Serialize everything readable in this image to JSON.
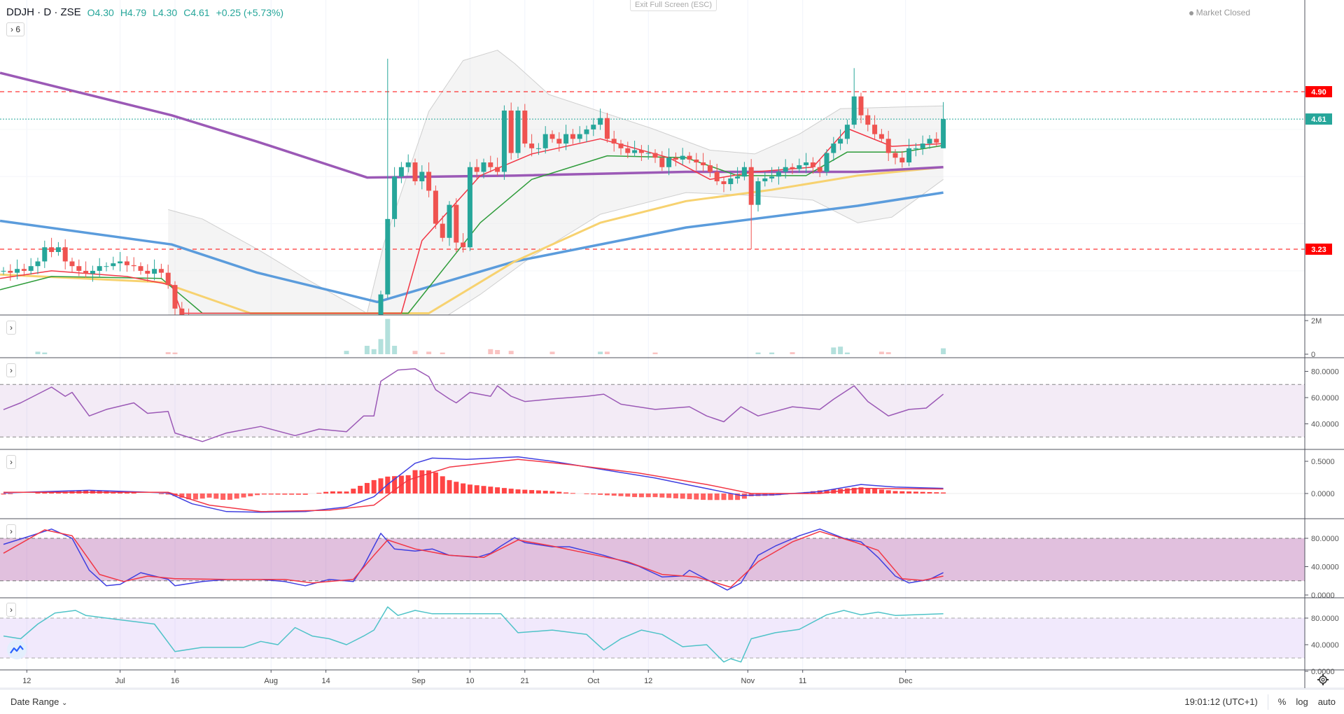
{
  "header": {
    "symbol": "DDJH · D · ZSE",
    "open": "O4.30",
    "high": "H4.79",
    "low": "L4.30",
    "close": "C4.61",
    "change": "+0.25 (+5.73%)",
    "indicators_toggle": "6"
  },
  "exit_fullscreen": "Exit Full Screen (ESC)",
  "market_status": "Market Closed",
  "colors": {
    "up": "#26a69a",
    "down": "#ef5350",
    "ma10": "#f23645",
    "ma20": "#2e9c3a",
    "ma50": "#f7d270",
    "ma100": "#5b9cdc",
    "ma200": "#9b59b6",
    "rsi": "#9b59b6",
    "macd": "#3f3fe0",
    "signal": "#f23645",
    "stoch_k": "#3f3fe0",
    "stoch_d": "#f23645",
    "osc": "#4fc3c8"
  },
  "price_lines": [
    {
      "label": "4.90",
      "value": 4.9,
      "color": "#ff0000",
      "style": "dashed"
    },
    {
      "label": "4.61",
      "value": 4.61,
      "color": "#26a69a",
      "style": "dotted"
    },
    {
      "label": "3.23",
      "value": 3.23,
      "color": "#ff0000",
      "style": "dashed"
    }
  ],
  "candles": {
    "closes": [
      3.0,
      2.98,
      3.02,
      3.0,
      3.05,
      3.1,
      3.25,
      3.2,
      3.25,
      3.1,
      3.05,
      3.0,
      2.97,
      3.0,
      3.05,
      3.05,
      3.08,
      3.1,
      3.06,
      3.05,
      3.0,
      2.97,
      3.02,
      2.98,
      2.85,
      2.6,
      2.5,
      2.45,
      2.4,
      2.38,
      2.35,
      2.3,
      2.32,
      2.3,
      2.28,
      2.3,
      2.33,
      2.3,
      2.28,
      2.25,
      2.28,
      2.3,
      2.32,
      2.3,
      2.28,
      2.3,
      2.32,
      2.3,
      2.28,
      2.26,
      2.28,
      2.3,
      2.32,
      2.35,
      2.4,
      2.75,
      3.55,
      4.0,
      4.1,
      4.15,
      3.95,
      4.05,
      3.85,
      3.5,
      3.35,
      3.7,
      3.3,
      3.25,
      4.1,
      4.05,
      4.15,
      4.1,
      4.05,
      4.7,
      4.25,
      4.7,
      4.35,
      4.3,
      4.3,
      4.45,
      4.4,
      4.35,
      4.45,
      4.4,
      4.45,
      4.5,
      4.55,
      4.62,
      4.4,
      4.35,
      4.3,
      4.25,
      4.28,
      4.25,
      4.25,
      4.2,
      4.1,
      4.2,
      4.18,
      4.22,
      4.18,
      4.15,
      4.12,
      4.05,
      3.95,
      3.92,
      3.98,
      4.0,
      4.1,
      3.7,
      3.95,
      3.98,
      4.0,
      4.05,
      4.1,
      4.08,
      4.12,
      4.15,
      4.1,
      4.05,
      4.25,
      4.35,
      4.4,
      4.55,
      4.85,
      4.65,
      4.55,
      4.45,
      4.4,
      4.25,
      4.2,
      4.15,
      4.3,
      4.3,
      4.35,
      4.4,
      4.36,
      4.61
    ],
    "overrides": {
      "55": {
        "o": 2.4
      },
      "56": {
        "h": 5.25
      },
      "66": {
        "l": 3.2
      },
      "109": {
        "l": 3.23
      },
      "124": {
        "h": 5.15
      },
      "137": {
        "o": 4.3,
        "h": 4.79,
        "l": 4.3
      }
    }
  },
  "moving_averages": {
    "ma10": [
      [
        -0.5,
        2.92
      ],
      [
        7,
        3.0
      ],
      [
        18,
        2.94
      ],
      [
        24.5,
        2.85
      ],
      [
        26,
        2.55
      ],
      [
        58,
        2.55
      ],
      [
        61,
        3.32
      ],
      [
        69.5,
        4.01
      ],
      [
        77,
        4.24
      ],
      [
        87,
        4.4
      ],
      [
        97,
        4.2
      ],
      [
        103,
        3.97
      ],
      [
        109.5,
        4.05
      ],
      [
        118,
        4.1
      ],
      [
        123,
        4.51
      ],
      [
        129.5,
        4.32
      ],
      [
        137,
        4.35
      ]
    ],
    "ma20": [
      [
        -0.5,
        2.8
      ],
      [
        7,
        2.94
      ],
      [
        23,
        2.92
      ],
      [
        29,
        2.55
      ],
      [
        59,
        2.55
      ],
      [
        69.5,
        3.51
      ],
      [
        77,
        3.97
      ],
      [
        88,
        4.22
      ],
      [
        99.5,
        4.2
      ],
      [
        107,
        4.01
      ],
      [
        117,
        4.01
      ],
      [
        123,
        4.26
      ],
      [
        131,
        4.26
      ],
      [
        137,
        4.33
      ]
    ],
    "ma50": [
      [
        -0.5,
        2.96
      ],
      [
        23,
        2.88
      ],
      [
        36,
        2.55
      ],
      [
        62,
        2.55
      ],
      [
        74.5,
        3.1
      ],
      [
        87,
        3.51
      ],
      [
        99.5,
        3.74
      ],
      [
        112,
        3.86
      ],
      [
        124.5,
        4.01
      ],
      [
        137,
        4.1
      ]
    ],
    "ma100": [
      [
        -0.5,
        3.53
      ],
      [
        24.5,
        3.28
      ],
      [
        37,
        2.98
      ],
      [
        54.5,
        2.67
      ],
      [
        74.5,
        3.1
      ],
      [
        99.5,
        3.46
      ],
      [
        124.5,
        3.69
      ],
      [
        137,
        3.83
      ]
    ],
    "ma200": [
      [
        -0.5,
        5.1
      ],
      [
        24.5,
        4.65
      ],
      [
        37,
        4.37
      ],
      [
        53,
        3.99
      ],
      [
        74.5,
        4.01
      ],
      [
        99.5,
        4.05
      ],
      [
        124.5,
        4.05
      ],
      [
        137,
        4.1
      ]
    ]
  },
  "bollinger": {
    "upper": [
      [
        24,
        3.65
      ],
      [
        29,
        3.55
      ],
      [
        37,
        3.23
      ],
      [
        44.5,
        2.9
      ],
      [
        53,
        2.55
      ],
      [
        55.5,
        3.3
      ],
      [
        62,
        4.69
      ],
      [
        67,
        5.23
      ],
      [
        72,
        5.34
      ],
      [
        74.5,
        5.2
      ],
      [
        79.5,
        4.87
      ],
      [
        87,
        4.69
      ],
      [
        94.5,
        4.51
      ],
      [
        103,
        4.28
      ],
      [
        109.5,
        4.24
      ],
      [
        116,
        4.45
      ],
      [
        122,
        4.72
      ],
      [
        137,
        4.75
      ]
    ],
    "lower": [
      [
        24,
        2.3
      ],
      [
        53,
        2.3
      ],
      [
        62,
        2.4
      ],
      [
        69.5,
        2.75
      ],
      [
        77,
        3.15
      ],
      [
        87,
        3.6
      ],
      [
        99.5,
        3.83
      ],
      [
        109.5,
        3.8
      ],
      [
        118,
        3.75
      ],
      [
        124.5,
        3.51
      ],
      [
        129.5,
        3.57
      ],
      [
        137,
        3.97
      ]
    ]
  },
  "volume_millions": [
    [
      5,
      0.15
    ],
    [
      6,
      0.1
    ],
    [
      24,
      0.12
    ],
    [
      25,
      0.1
    ],
    [
      50,
      0.2
    ],
    [
      53,
      0.5
    ],
    [
      54,
      0.3
    ],
    [
      55,
      0.9
    ],
    [
      56,
      2.1
    ],
    [
      57,
      0.5
    ],
    [
      60,
      0.2
    ],
    [
      62,
      0.15
    ],
    [
      64,
      0.1
    ],
    [
      71,
      0.3
    ],
    [
      72,
      0.25
    ],
    [
      74,
      0.2
    ],
    [
      80,
      0.15
    ],
    [
      87,
      0.15
    ],
    [
      88,
      0.15
    ],
    [
      95,
      0.1
    ],
    [
      110,
      0.1
    ],
    [
      112,
      0.1
    ],
    [
      115,
      0.12
    ],
    [
      121,
      0.4
    ],
    [
      122,
      0.45
    ],
    [
      123,
      0.1
    ],
    [
      128,
      0.15
    ],
    [
      129,
      0.12
    ],
    [
      137,
      0.35
    ]
  ],
  "rsi": {
    "band": [
      30,
      70
    ],
    "values": [
      [
        0,
        50.8
      ],
      [
        2.5,
        56
      ],
      [
        7,
        68
      ],
      [
        9,
        61
      ],
      [
        10,
        64
      ],
      [
        12.5,
        46
      ],
      [
        15,
        51
      ],
      [
        19,
        56
      ],
      [
        21,
        48
      ],
      [
        24,
        49.5
      ],
      [
        25,
        33
      ],
      [
        29,
        26.5
      ],
      [
        32.5,
        33
      ],
      [
        37.5,
        38
      ],
      [
        42.5,
        31
      ],
      [
        46,
        36
      ],
      [
        50,
        34
      ],
      [
        52.5,
        46
      ],
      [
        54,
        46
      ],
      [
        55,
        72.5
      ],
      [
        57.5,
        81
      ],
      [
        60,
        82
      ],
      [
        62,
        76
      ],
      [
        63,
        66
      ],
      [
        65,
        59
      ],
      [
        66,
        56
      ],
      [
        68,
        64
      ],
      [
        71,
        61
      ],
      [
        72,
        69
      ],
      [
        74,
        61
      ],
      [
        76,
        57
      ],
      [
        80,
        59
      ],
      [
        85,
        61
      ],
      [
        87.5,
        62.6
      ],
      [
        90,
        55
      ],
      [
        95,
        51
      ],
      [
        100,
        53
      ],
      [
        102.5,
        46
      ],
      [
        105,
        41.6
      ],
      [
        107.5,
        53
      ],
      [
        110,
        46
      ],
      [
        112.5,
        49.5
      ],
      [
        115,
        53
      ],
      [
        119,
        51
      ],
      [
        121,
        58.7
      ],
      [
        124,
        69
      ],
      [
        126,
        57
      ],
      [
        129,
        46
      ],
      [
        132,
        51
      ],
      [
        134.5,
        52
      ],
      [
        137,
        62.6
      ]
    ]
  },
  "macd": {
    "macd": [
      [
        0,
        0.01
      ],
      [
        12.5,
        0.05
      ],
      [
        24,
        0.01
      ],
      [
        27.5,
        -0.16
      ],
      [
        32.5,
        -0.28
      ],
      [
        37.5,
        -0.29
      ],
      [
        44,
        -0.28
      ],
      [
        50,
        -0.21
      ],
      [
        54,
        -0.05
      ],
      [
        56,
        0.14
      ],
      [
        60,
        0.47
      ],
      [
        62.5,
        0.55
      ],
      [
        67.5,
        0.53
      ],
      [
        75,
        0.57
      ],
      [
        80,
        0.5
      ],
      [
        87.5,
        0.37
      ],
      [
        95,
        0.24
      ],
      [
        100,
        0.13
      ],
      [
        107.5,
        -0.03
      ],
      [
        112.5,
        -0.02
      ],
      [
        119,
        0.03
      ],
      [
        125,
        0.14
      ],
      [
        130,
        0.1
      ],
      [
        137,
        0.08
      ]
    ],
    "signal": [
      [
        0,
        0.02
      ],
      [
        24,
        0.02
      ],
      [
        30,
        -0.18
      ],
      [
        37.5,
        -0.28
      ],
      [
        47.5,
        -0.26
      ],
      [
        54,
        -0.18
      ],
      [
        59,
        0.21
      ],
      [
        65,
        0.41
      ],
      [
        75,
        0.53
      ],
      [
        82.5,
        0.45
      ],
      [
        92.5,
        0.32
      ],
      [
        102.5,
        0.14
      ],
      [
        109,
        0.0
      ],
      [
        119,
        0.0
      ],
      [
        125,
        0.08
      ],
      [
        137,
        0.07
      ]
    ]
  },
  "stochastic": {
    "band": [
      20,
      80
    ],
    "k": [
      [
        0,
        71.5
      ],
      [
        4,
        83.6
      ],
      [
        7,
        93
      ],
      [
        10,
        80
      ],
      [
        12.5,
        35
      ],
      [
        15,
        13
      ],
      [
        17,
        15
      ],
      [
        20,
        31.5
      ],
      [
        24,
        22
      ],
      [
        25,
        13
      ],
      [
        29,
        19
      ],
      [
        32.5,
        22
      ],
      [
        37.5,
        22
      ],
      [
        41,
        19
      ],
      [
        44,
        13
      ],
      [
        47.5,
        22
      ],
      [
        51,
        19
      ],
      [
        52.5,
        41
      ],
      [
        55,
        87
      ],
      [
        57,
        65
      ],
      [
        60,
        62
      ],
      [
        62.5,
        65
      ],
      [
        65,
        56
      ],
      [
        69,
        53
      ],
      [
        71,
        59
      ],
      [
        72.5,
        69
      ],
      [
        74.5,
        81
      ],
      [
        76,
        74
      ],
      [
        80,
        68
      ],
      [
        82.5,
        68
      ],
      [
        87.5,
        56
      ],
      [
        92.5,
        41
      ],
      [
        96,
        25.5
      ],
      [
        99,
        27
      ],
      [
        100,
        35
      ],
      [
        102.5,
        22
      ],
      [
        105.5,
        7
      ],
      [
        107.5,
        17
      ],
      [
        110,
        56
      ],
      [
        112.5,
        69
      ],
      [
        116,
        83.6
      ],
      [
        119,
        93
      ],
      [
        122.5,
        80
      ],
      [
        125,
        75
      ],
      [
        127.5,
        53
      ],
      [
        130,
        26.7
      ],
      [
        132,
        17
      ],
      [
        135,
        22
      ],
      [
        137,
        31.5
      ]
    ],
    "d": [
      [
        0,
        59
      ],
      [
        6,
        92
      ],
      [
        10,
        83.6
      ],
      [
        14,
        29
      ],
      [
        17.5,
        19
      ],
      [
        21,
        26.7
      ],
      [
        25,
        23
      ],
      [
        32.5,
        22
      ],
      [
        41,
        22
      ],
      [
        45,
        17
      ],
      [
        51,
        22
      ],
      [
        54,
        56
      ],
      [
        56,
        77.6
      ],
      [
        60,
        65
      ],
      [
        65,
        56
      ],
      [
        70,
        53
      ],
      [
        75,
        77.6
      ],
      [
        80,
        69
      ],
      [
        85,
        59
      ],
      [
        91,
        47
      ],
      [
        96,
        29
      ],
      [
        101,
        25.5
      ],
      [
        106,
        11
      ],
      [
        110,
        47
      ],
      [
        115,
        75
      ],
      [
        119,
        89.7
      ],
      [
        124,
        75
      ],
      [
        127.5,
        63
      ],
      [
        131,
        23
      ],
      [
        134,
        20.6
      ],
      [
        137,
        26.7
      ]
    ]
  },
  "oscillator": {
    "band": [
      20,
      80
    ],
    "values": [
      [
        0,
        53
      ],
      [
        2.5,
        49
      ],
      [
        5,
        71
      ],
      [
        7.5,
        87.7
      ],
      [
        10.5,
        91.6
      ],
      [
        12,
        84
      ],
      [
        16,
        78.7
      ],
      [
        22,
        71
      ],
      [
        25,
        29.7
      ],
      [
        29,
        36
      ],
      [
        35,
        36
      ],
      [
        37.5,
        45
      ],
      [
        40,
        40
      ],
      [
        42.5,
        65.8
      ],
      [
        45,
        53
      ],
      [
        47.5,
        49
      ],
      [
        50,
        40
      ],
      [
        52.5,
        53
      ],
      [
        54,
        62
      ],
      [
        56,
        96.8
      ],
      [
        57.5,
        84
      ],
      [
        60,
        91.6
      ],
      [
        62.5,
        86.5
      ],
      [
        67.5,
        86.5
      ],
      [
        72.5,
        86.5
      ],
      [
        75,
        58
      ],
      [
        80,
        62
      ],
      [
        85,
        55.5
      ],
      [
        87.5,
        32
      ],
      [
        90,
        49
      ],
      [
        93,
        62
      ],
      [
        96,
        55.5
      ],
      [
        99,
        37
      ],
      [
        102.5,
        40
      ],
      [
        105,
        14
      ],
      [
        106,
        19
      ],
      [
        107.5,
        14
      ],
      [
        109,
        49
      ],
      [
        112.5,
        58
      ],
      [
        116,
        63
      ],
      [
        120,
        85
      ],
      [
        122.5,
        91.6
      ],
      [
        125,
        85
      ],
      [
        127.5,
        89
      ],
      [
        130,
        84
      ],
      [
        137,
        86.5
      ]
    ]
  },
  "axes": {
    "volume": [
      {
        "label": "2M",
        "value": 2
      },
      {
        "label": "0",
        "value": 0
      }
    ],
    "rsi": [
      {
        "label": "80.0000",
        "value": 80
      },
      {
        "label": "60.0000",
        "value": 60
      },
      {
        "label": "40.0000",
        "value": 40
      }
    ],
    "macd": [
      {
        "label": "0.5000",
        "value": 0.5
      },
      {
        "label": "0.0000",
        "value": 0
      }
    ],
    "stochastic": [
      {
        "label": "80.0000",
        "value": 80
      },
      {
        "label": "40.0000",
        "value": 40
      },
      {
        "label": "0.0000",
        "value": 0
      }
    ],
    "oscillator": [
      {
        "label": "80.0000",
        "value": 80
      },
      {
        "label": "40.0000",
        "value": 40
      },
      {
        "label": "0.0000",
        "value": 0
      }
    ]
  },
  "time_axis": [
    {
      "label": "12",
      "bar": 3.4
    },
    {
      "label": "Jul",
      "bar": 17
    },
    {
      "label": "16",
      "bar": 25
    },
    {
      "label": "Aug",
      "bar": 39
    },
    {
      "label": "14",
      "bar": 47
    },
    {
      "label": "Sep",
      "bar": 60.5
    },
    {
      "label": "10",
      "bar": 68
    },
    {
      "label": "21",
      "bar": 76
    },
    {
      "label": "Oct",
      "bar": 86
    },
    {
      "label": "12",
      "bar": 94
    },
    {
      "label": "Nov",
      "bar": 108.5
    },
    {
      "label": "11",
      "bar": 116.5
    },
    {
      "label": "Dec",
      "bar": 131.5
    }
  ],
  "bottom": {
    "date_range": "Date Range",
    "time": "19:01:12 (UTC+1)",
    "percent": "%",
    "log": "log",
    "auto": "auto"
  }
}
